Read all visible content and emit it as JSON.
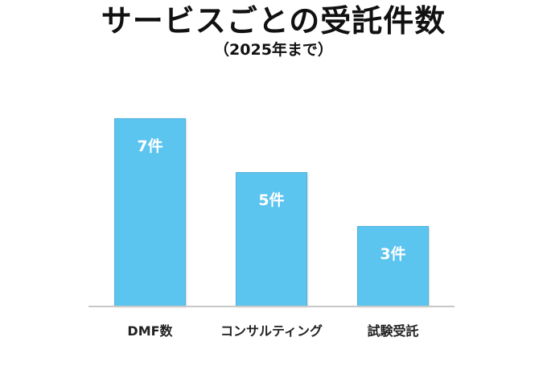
{
  "chart_data": {
    "type": "bar",
    "title": "サービスごとの受託件数",
    "subtitle": "（2025年まで）",
    "categories": [
      "DMF数",
      "コンサルティング",
      "試験受託"
    ],
    "values": [
      7,
      5,
      3
    ],
    "data_labels": [
      "7件",
      "5件",
      "3件"
    ],
    "xlabel": "",
    "ylabel": "",
    "ylim": [
      0,
      7
    ],
    "grid": false,
    "legend": null,
    "bar_color": "#5bc4ef",
    "label_color": "#ffffff"
  }
}
